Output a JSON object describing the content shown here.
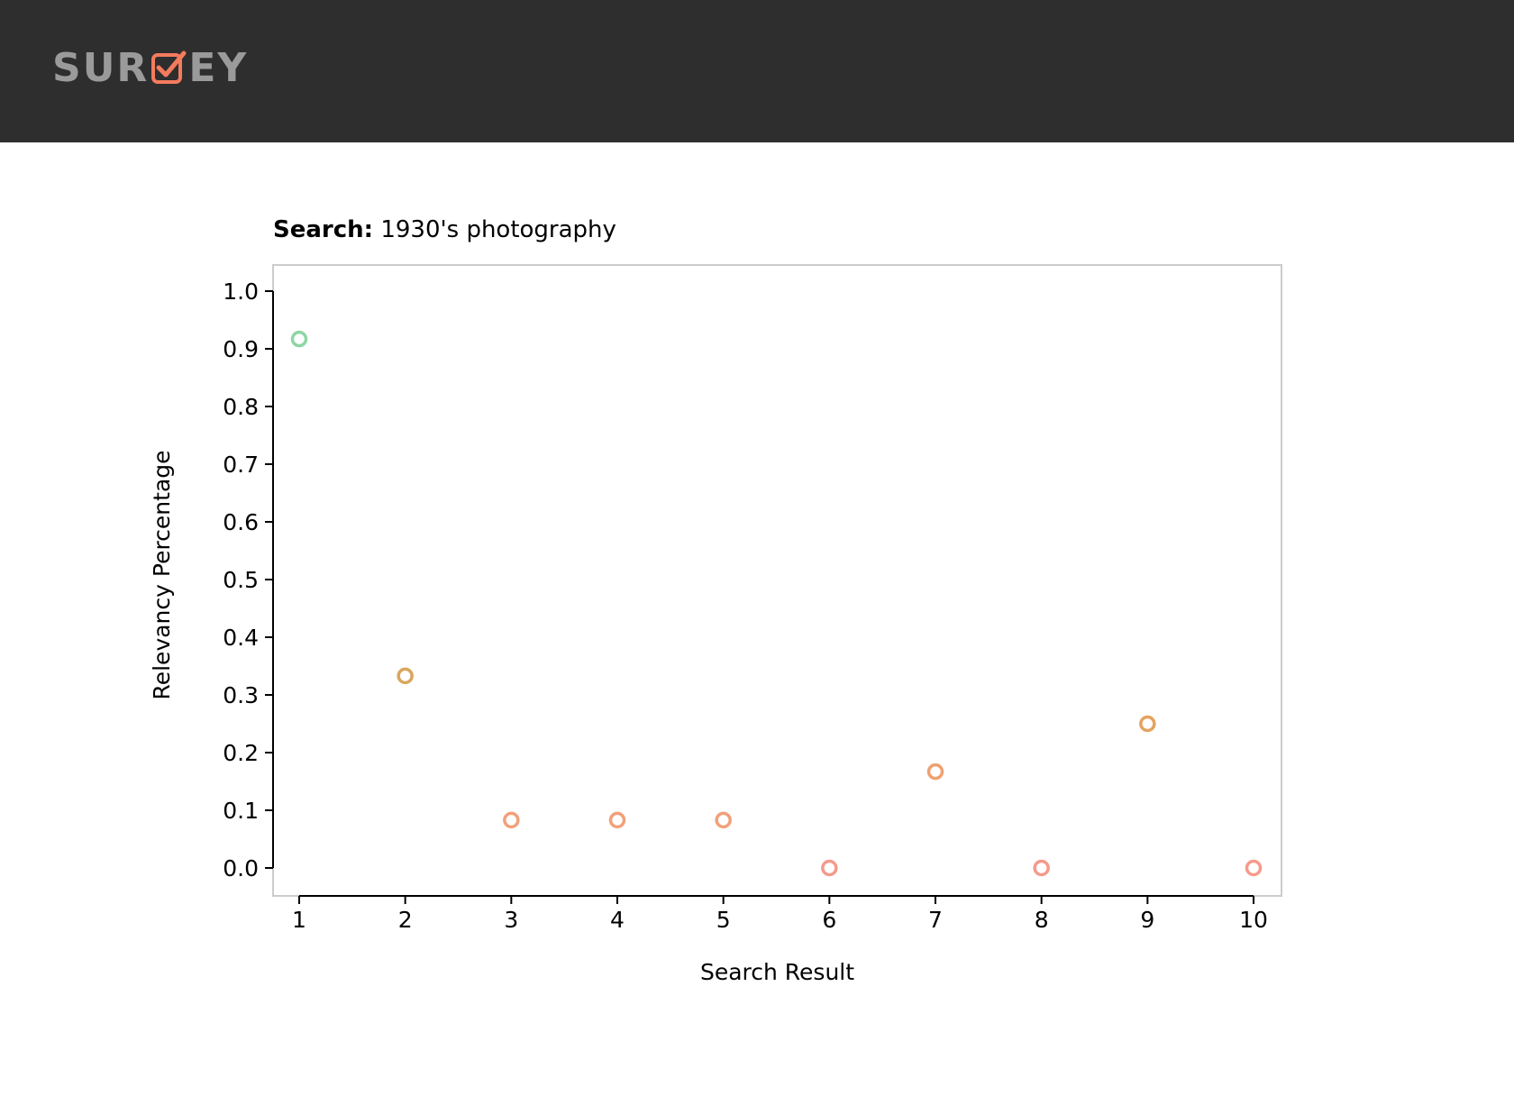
{
  "header": {
    "logo_prefix": "SUR",
    "logo_suffix": "EY",
    "logo_color": "#9a9a9a",
    "accent_color": "#f47b5e",
    "background_color": "#2e2e2e"
  },
  "search": {
    "label": "Search:",
    "query": "1930's photography"
  },
  "chart_data": {
    "type": "scatter",
    "xlabel": "Search Result",
    "ylabel": "Relevancy Percentage",
    "x": [
      1,
      2,
      3,
      4,
      5,
      6,
      7,
      8,
      9,
      10
    ],
    "values": [
      0.917,
      0.333,
      0.083,
      0.083,
      0.083,
      0.0,
      0.167,
      0.0,
      0.25,
      0.0
    ],
    "colors": [
      "#8fd6a3",
      "#d9a65e",
      "#f2a07a",
      "#f2a07a",
      "#f2a07a",
      "#f59a8c",
      "#eea170",
      "#f59a8c",
      "#e4a35e",
      "#f59a8c"
    ],
    "xticks": [
      "1",
      "2",
      "3",
      "4",
      "5",
      "6",
      "7",
      "8",
      "9",
      "10"
    ],
    "yticks": [
      "0.0",
      "0.1",
      "0.2",
      "0.3",
      "0.4",
      "0.5",
      "0.6",
      "0.7",
      "0.8",
      "0.9",
      "1.0"
    ],
    "ylim": [
      0,
      1
    ],
    "xlim": [
      1,
      10
    ],
    "grid": false,
    "marker": "hollow circle"
  }
}
